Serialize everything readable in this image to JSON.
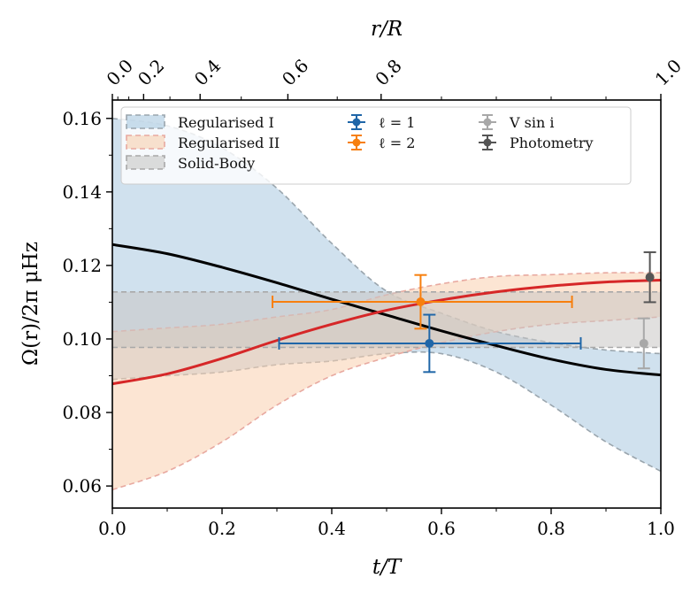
{
  "chart_data": {
    "type": "line",
    "xlabel": "t/T",
    "ylabel": "Ω(r)/2π μHz",
    "top_xlabel": "r/R",
    "xlim": [
      0.0,
      1.0
    ],
    "ylim": [
      0.054,
      0.165
    ],
    "x_ticks": [
      0.0,
      0.2,
      0.4,
      0.6,
      0.8,
      1.0
    ],
    "x_tick_labels": [
      "0.0",
      "0.2",
      "0.4",
      "0.6",
      "0.8",
      "1.0"
    ],
    "y_ticks": [
      0.06,
      0.08,
      0.1,
      0.12,
      0.14,
      0.16
    ],
    "y_tick_labels": [
      "0.06",
      "0.08",
      "0.10",
      "0.12",
      "0.14",
      "0.16"
    ],
    "top_ticks": [
      {
        "label": "0.0",
        "t": 0.0
      },
      {
        "label": "0.2",
        "t": 0.057
      },
      {
        "label": "0.4",
        "t": 0.16
      },
      {
        "label": "0.6",
        "t": 0.32
      },
      {
        "label": "0.8",
        "t": 0.49
      },
      {
        "label": "1.0",
        "t": 1.0
      }
    ],
    "top_minor_ticks": [
      0.01,
      0.03,
      0.105,
      0.235,
      0.41,
      0.6,
      0.7,
      0.8,
      0.9
    ],
    "grid": false,
    "legend_position": "top",
    "legend": [
      {
        "label": "Regularised I",
        "kind": "band",
        "color": "#a9c8e0",
        "edge": "#9aa5ad"
      },
      {
        "label": "Regularised II",
        "kind": "band",
        "color": "#f9cfae",
        "edge": "#e8a9a0"
      },
      {
        "label": "Solid-Body",
        "kind": "band",
        "color": "#c8c6c4",
        "edge": "#a8a8a8"
      },
      {
        "label": "ℓ = 1",
        "kind": "errorbar",
        "color": "#1f66a8"
      },
      {
        "label": "ℓ = 2",
        "kind": "errorbar",
        "color": "#f77f0e"
      },
      {
        "label": "V sin i",
        "kind": "errorbar",
        "color": "#a8a8a8"
      },
      {
        "label": "Photometry",
        "kind": "errorbar",
        "color": "#555555"
      }
    ],
    "bands": [
      {
        "name": "Regularised I",
        "color": "#a9c8e0",
        "edge": "#9aa5ad",
        "x": [
          0.0,
          0.1,
          0.2,
          0.3,
          0.4,
          0.5,
          0.6,
          0.7,
          0.8,
          0.9,
          1.0
        ],
        "upper": [
          0.16,
          0.158,
          0.152,
          0.141,
          0.126,
          0.113,
          0.107,
          0.102,
          0.099,
          0.097,
          0.096
        ],
        "lower": [
          0.089,
          0.09,
          0.091,
          0.093,
          0.094,
          0.096,
          0.096,
          0.091,
          0.082,
          0.072,
          0.064
        ]
      },
      {
        "name": "Regularised II",
        "color": "#f9cfae",
        "edge": "#e8a9a0",
        "x": [
          0.0,
          0.1,
          0.2,
          0.3,
          0.4,
          0.5,
          0.6,
          0.7,
          0.8,
          0.9,
          1.0
        ],
        "upper": [
          0.102,
          0.103,
          0.104,
          0.106,
          0.108,
          0.112,
          0.115,
          0.117,
          0.1175,
          0.118,
          0.118
        ],
        "lower": [
          0.059,
          0.064,
          0.072,
          0.082,
          0.09,
          0.095,
          0.099,
          0.102,
          0.104,
          0.105,
          0.106
        ]
      },
      {
        "name": "Solid-Body",
        "color": "#c8c6c4",
        "edge": "#a8a8a8",
        "x": [
          0.0,
          1.0
        ],
        "upper": [
          0.1128,
          0.1128
        ],
        "lower": [
          0.0977,
          0.0977
        ]
      }
    ],
    "series": [
      {
        "color": "#000000",
        "x": [
          0.0,
          0.1,
          0.2,
          0.3,
          0.4,
          0.5,
          0.6,
          0.7,
          0.8,
          0.9,
          1.0
        ],
        "y": [
          0.1257,
          0.1232,
          0.1195,
          0.1153,
          0.1108,
          0.1065,
          0.1022,
          0.0982,
          0.0945,
          0.0917,
          0.0902
        ]
      },
      {
        "color": "#d62728",
        "x": [
          0.0,
          0.1,
          0.2,
          0.3,
          0.4,
          0.5,
          0.6,
          0.7,
          0.8,
          0.9,
          1.0
        ],
        "y": [
          0.0878,
          0.0905,
          0.0947,
          0.0996,
          0.104,
          0.1078,
          0.1106,
          0.1128,
          0.1144,
          0.1155,
          0.116
        ]
      }
    ],
    "errorbars": [
      {
        "name": "ℓ = 1",
        "color": "#1f66a8",
        "x": 0.578,
        "y": 0.0988,
        "xerr": [
          0.274,
          0.276
        ],
        "yerr": [
          0.0078,
          0.0078
        ]
      },
      {
        "name": "ℓ = 2",
        "color": "#f77f0e",
        "x": 0.562,
        "y": 0.1101,
        "xerr": [
          0.27,
          0.276
        ],
        "yerr": [
          0.0073,
          0.0073
        ]
      },
      {
        "name": "V sin i",
        "color": "#a8a8a8",
        "x": 0.969,
        "y": 0.0988,
        "xerr": [
          0,
          0
        ],
        "yerr": [
          0.0068,
          0.0068
        ]
      },
      {
        "name": "Photometry",
        "color": "#555555",
        "x": 0.98,
        "y": 0.1168,
        "xerr": [
          0,
          0
        ],
        "yerr": [
          0.0068,
          0.0068
        ]
      }
    ]
  }
}
